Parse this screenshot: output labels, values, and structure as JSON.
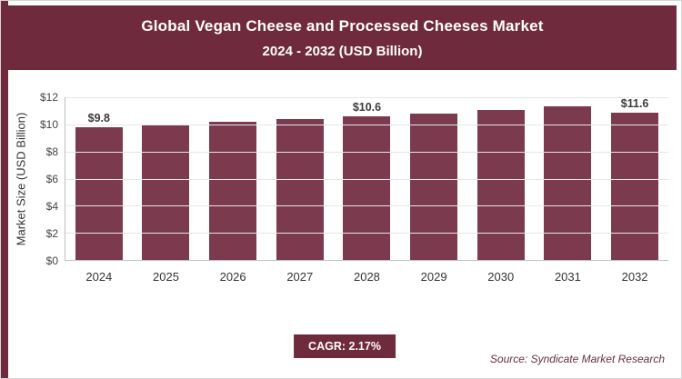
{
  "page": {
    "accent_color": "#6f2b3d",
    "bar_color": "#7b3a4e"
  },
  "header": {
    "title_line1": "Global Vegan Cheese and Processed Cheeses Market",
    "title_line2": "2024 - 2032 (USD Billion)"
  },
  "chart_data": {
    "type": "bar",
    "title": "Global Vegan Cheese and Processed Cheeses Market 2024 - 2032 (USD Billion)",
    "categories": [
      "2024",
      "2025",
      "2026",
      "2027",
      "2028",
      "2029",
      "2030",
      "2031",
      "2032"
    ],
    "values": [
      9.8,
      10.0,
      10.2,
      10.4,
      10.6,
      10.8,
      11.05,
      11.3,
      11.6
    ],
    "bar_labels": [
      "$9.8",
      "",
      "",
      "",
      "$10.6",
      "",
      "",
      "",
      "$11.6"
    ],
    "xlabel": "",
    "ylabel": "Market Size (USD Billion)",
    "ylim": [
      0,
      12
    ],
    "ytick_labels": [
      "$0",
      "$2",
      "$4",
      "$6",
      "$8",
      "$10",
      "$12"
    ],
    "grid": true,
    "legend_position": "none",
    "bar_color": "#7b3a4e"
  },
  "footer": {
    "cagr_label": "CAGR: 2.17%",
    "source": "Source: Syndicate Market Research"
  }
}
